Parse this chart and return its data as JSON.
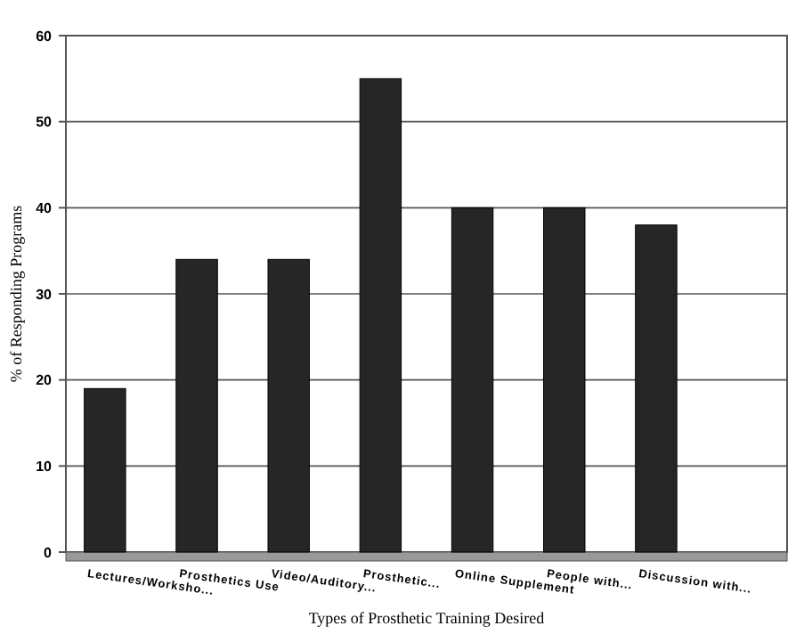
{
  "chart_data": {
    "type": "bar",
    "xlabel": "Types of Prosthetic Training Desired",
    "ylabel": "% of Responding Programs",
    "categories": [
      "Lectures/Worksho...",
      "Prosthetics Use",
      "Video/Auditory...",
      "Prosthetic...",
      "Online Supplement",
      "People with...",
      "Discussion with...",
      null
    ],
    "values": [
      19,
      34,
      34,
      55,
      40,
      40,
      38,
      null
    ],
    "color": "#262626",
    "ylim": [
      0,
      60
    ],
    "yticks": [
      0,
      10,
      20,
      30,
      40,
      50,
      60
    ],
    "grid": "y"
  }
}
